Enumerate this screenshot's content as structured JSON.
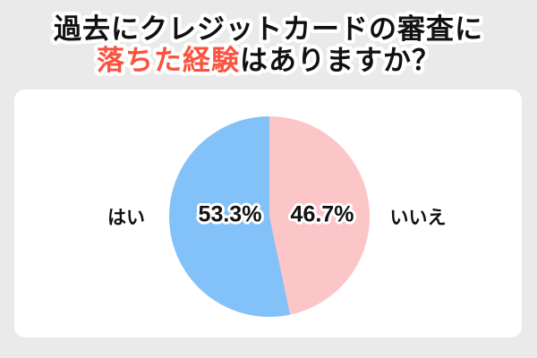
{
  "page": {
    "background_color": "#EAEAEA",
    "card_color": "#FFFFFF"
  },
  "title": {
    "line1": "過去にクレジットカードの審査に",
    "line2_highlight": "落ちた経験",
    "line2_rest": "はありますか？",
    "text_color": "#111111",
    "highlight_color": "#FA5340"
  },
  "chart_data": {
    "type": "pie",
    "title": "過去にクレジットカードの審査に落ちた経験はありますか？",
    "categories": [
      "はい",
      "いいえ"
    ],
    "values": [
      53.3,
      46.7
    ],
    "slice_labels": [
      "53.3%",
      "46.7%"
    ],
    "colors": [
      "#82C2F8",
      "#FCC5C7"
    ],
    "unit": "%",
    "clockwise_from_top": [
      1,
      0
    ],
    "legend_position": "sides",
    "category_label_sides": [
      "left",
      "right"
    ]
  }
}
